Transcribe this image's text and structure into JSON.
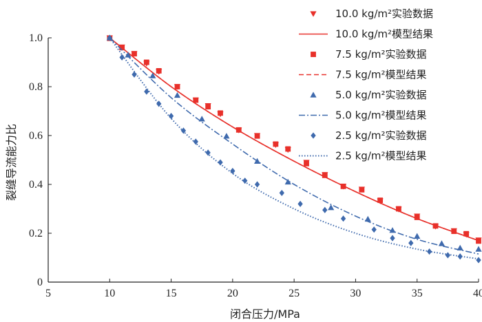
{
  "chart_data": {
    "type": "line",
    "xlabel": "闭合压力/MPa",
    "ylabel": "裂缝导流能力比",
    "xlim": [
      5,
      40
    ],
    "ylim": [
      0,
      1.0
    ],
    "xticks": [
      5,
      10,
      15,
      20,
      25,
      30,
      35,
      40
    ],
    "yticks": [
      0,
      0.2,
      0.4,
      0.6,
      0.8,
      1.0
    ],
    "xtick_labels": [
      "5",
      "10",
      "15",
      "20",
      "25",
      "30",
      "35",
      "40"
    ],
    "ytick_labels": [
      "0",
      "0.2",
      "0.4",
      "0.6",
      "0.8",
      "1.0"
    ],
    "grid": false,
    "legend_position": "top-right",
    "series": [
      {
        "name": "10.0 kg/m²实验数据",
        "kind": "scatter",
        "marker": "triangle-down",
        "color": "#e8302a",
        "x": [
          10,
          11,
          12,
          13,
          14,
          15.5,
          17,
          18,
          19,
          20.5,
          22,
          23.5,
          24.5,
          26,
          27.5,
          29,
          30.5,
          32,
          33.5,
          35,
          36.5,
          38,
          39,
          40
        ],
        "y": [
          1.0,
          0.962,
          0.935,
          0.895,
          0.862,
          0.8,
          0.745,
          0.722,
          0.688,
          0.622,
          0.6,
          0.562,
          0.542,
          0.49,
          0.44,
          0.392,
          0.38,
          0.332,
          0.298,
          0.27,
          0.228,
          0.21,
          0.195,
          0.172
        ]
      },
      {
        "name": "10.0 kg/m²模型结果",
        "kind": "line",
        "dash": "solid",
        "color": "#e8302a",
        "x": [
          10,
          15,
          20,
          25,
          30,
          35,
          40
        ],
        "y": [
          1.0,
          0.8,
          0.635,
          0.495,
          0.37,
          0.26,
          0.17
        ]
      },
      {
        "name": "7.5 kg/m²实验数据",
        "kind": "scatter",
        "marker": "square",
        "color": "#e8302a",
        "x": [
          10,
          11,
          12,
          13,
          14,
          15.5,
          17,
          18,
          19,
          20.5,
          22,
          23.5,
          24.5,
          26,
          27.5,
          29,
          30.5,
          32,
          33.5,
          35,
          36.5,
          38,
          39,
          40
        ],
        "y": [
          0.998,
          0.96,
          0.935,
          0.9,
          0.865,
          0.8,
          0.745,
          0.718,
          0.692,
          0.623,
          0.598,
          0.565,
          0.545,
          0.485,
          0.437,
          0.392,
          0.378,
          0.335,
          0.3,
          0.265,
          0.23,
          0.208,
          0.198,
          0.168
        ]
      },
      {
        "name": "7.5 kg/m²模型结果",
        "kind": "line",
        "dash": "dashed",
        "color": "#e8302a",
        "x": [
          10,
          15,
          20,
          25,
          30,
          35,
          40
        ],
        "y": [
          1.0,
          0.8,
          0.635,
          0.495,
          0.37,
          0.26,
          0.17
        ]
      },
      {
        "name": "5.0 kg/m²实验数据",
        "kind": "scatter",
        "marker": "triangle-up",
        "color": "#3f6aad",
        "x": [
          10,
          11.5,
          13.5,
          15.5,
          17.5,
          19.5,
          22,
          24.5,
          28,
          31,
          33,
          35,
          37,
          38.5,
          40
        ],
        "y": [
          1.0,
          0.93,
          0.845,
          0.765,
          0.668,
          0.598,
          0.495,
          0.41,
          0.305,
          0.258,
          0.212,
          0.188,
          0.158,
          0.14,
          0.135
        ]
      },
      {
        "name": "5.0 kg/m²模型结果",
        "kind": "line",
        "dash": "dash-dot",
        "color": "#3f6aad",
        "x": [
          10,
          15,
          20,
          25,
          30,
          35,
          40
        ],
        "y": [
          1.0,
          0.755,
          0.565,
          0.4,
          0.27,
          0.175,
          0.115
        ]
      },
      {
        "name": "2.5 kg/m²实验数据",
        "kind": "scatter",
        "marker": "diamond",
        "color": "#3f6aad",
        "x": [
          10,
          11,
          12,
          13,
          14,
          15,
          16,
          17,
          18,
          19,
          20,
          21,
          22,
          24,
          25.5,
          27.5,
          29,
          31.5,
          33,
          34.5,
          36,
          37.5,
          38.5,
          40
        ],
        "y": [
          1.0,
          0.92,
          0.85,
          0.78,
          0.73,
          0.68,
          0.62,
          0.575,
          0.53,
          0.49,
          0.455,
          0.415,
          0.4,
          0.365,
          0.32,
          0.295,
          0.26,
          0.215,
          0.18,
          0.16,
          0.125,
          0.11,
          0.105,
          0.09
        ]
      },
      {
        "name": "2.5 kg/m²模型结果",
        "kind": "line",
        "dash": "dotted",
        "color": "#3f6aad",
        "x": [
          10,
          15,
          20,
          25,
          30,
          35,
          40
        ],
        "y": [
          1.0,
          0.67,
          0.445,
          0.3,
          0.2,
          0.135,
          0.095
        ]
      }
    ]
  }
}
